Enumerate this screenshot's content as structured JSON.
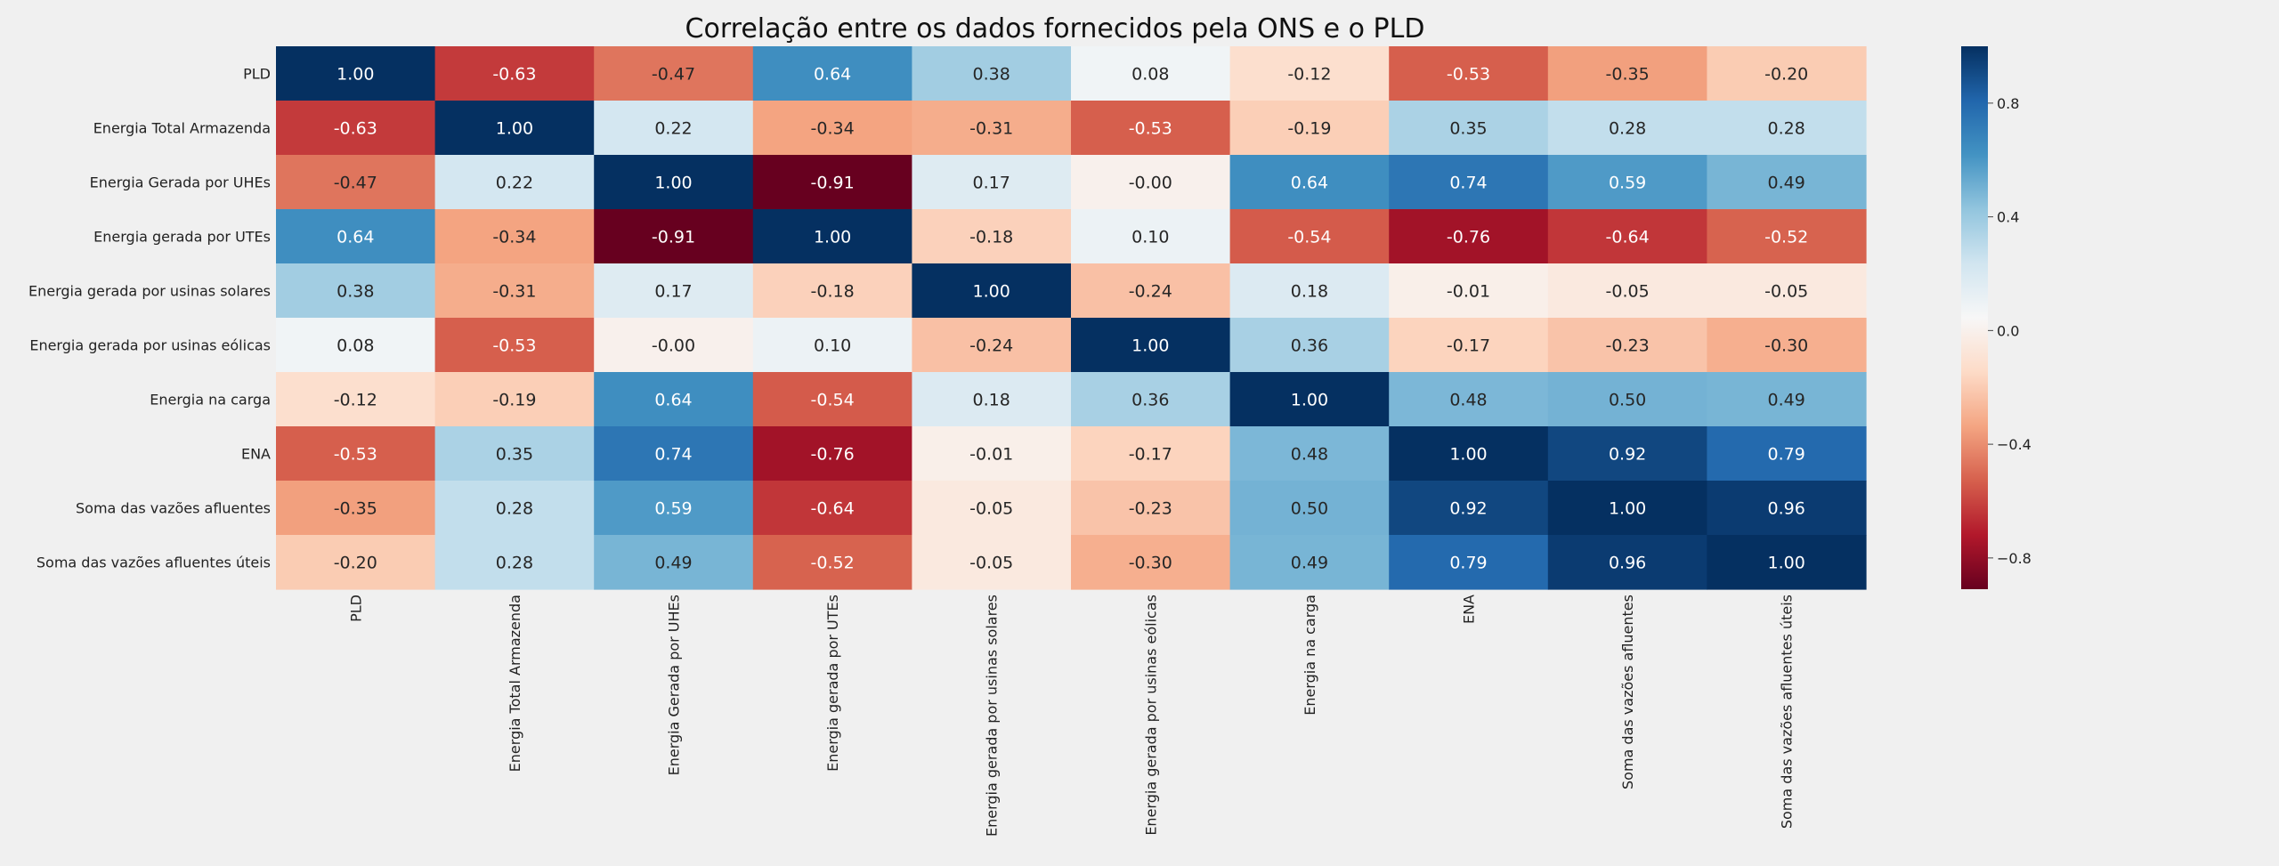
{
  "chart_data": {
    "type": "heatmap",
    "title": "Correlação entre os dados fornecidos pela ONS e o PLD",
    "labels": [
      "PLD",
      "Energia Total Armazenda",
      "Energia Gerada por UHEs",
      "Energia gerada por UTEs",
      "Energia gerada por usinas solares",
      "Energia gerada por usinas eólicas",
      "Energia na carga",
      "ENA",
      "Soma das vazões afluentes",
      "Soma das vazões afluentes úteis"
    ],
    "values": [
      [
        1.0,
        -0.63,
        -0.47,
        0.64,
        0.38,
        0.08,
        -0.12,
        -0.53,
        -0.35,
        -0.2
      ],
      [
        -0.63,
        1.0,
        0.22,
        -0.34,
        -0.31,
        -0.53,
        -0.19,
        0.35,
        0.28,
        0.28
      ],
      [
        -0.47,
        0.22,
        1.0,
        -0.91,
        0.17,
        -0.0,
        0.64,
        0.74,
        0.59,
        0.49
      ],
      [
        0.64,
        -0.34,
        -0.91,
        1.0,
        -0.18,
        0.1,
        -0.54,
        -0.76,
        -0.64,
        -0.52
      ],
      [
        0.38,
        -0.31,
        0.17,
        -0.18,
        1.0,
        -0.24,
        0.18,
        -0.01,
        -0.05,
        -0.05
      ],
      [
        0.08,
        -0.53,
        -0.0,
        0.1,
        -0.24,
        1.0,
        0.36,
        -0.17,
        -0.23,
        -0.3
      ],
      [
        -0.12,
        -0.19,
        0.64,
        -0.54,
        0.18,
        0.36,
        1.0,
        0.48,
        0.5,
        0.49
      ],
      [
        -0.53,
        0.35,
        0.74,
        -0.76,
        -0.01,
        -0.17,
        0.48,
        1.0,
        0.92,
        0.79
      ],
      [
        -0.35,
        0.28,
        0.59,
        -0.64,
        -0.05,
        -0.23,
        0.5,
        0.92,
        1.0,
        0.96
      ],
      [
        -0.2,
        0.28,
        0.49,
        -0.52,
        -0.05,
        -0.3,
        0.49,
        0.79,
        0.96,
        1.0
      ]
    ],
    "colormap": "RdBu",
    "vmin": -0.91,
    "vmax": 1.0,
    "colorbar_ticks": [
      0.8,
      0.4,
      0.0,
      -0.4,
      -0.8
    ],
    "colorbar_tick_labels": [
      "0.8",
      "0.4",
      "0.0",
      "−0.4",
      "−0.8"
    ],
    "annotation_format": "0.00"
  },
  "colors": {
    "background": "#f0f0f0",
    "text_light": "#ffffff",
    "text_dark": "#262626"
  }
}
